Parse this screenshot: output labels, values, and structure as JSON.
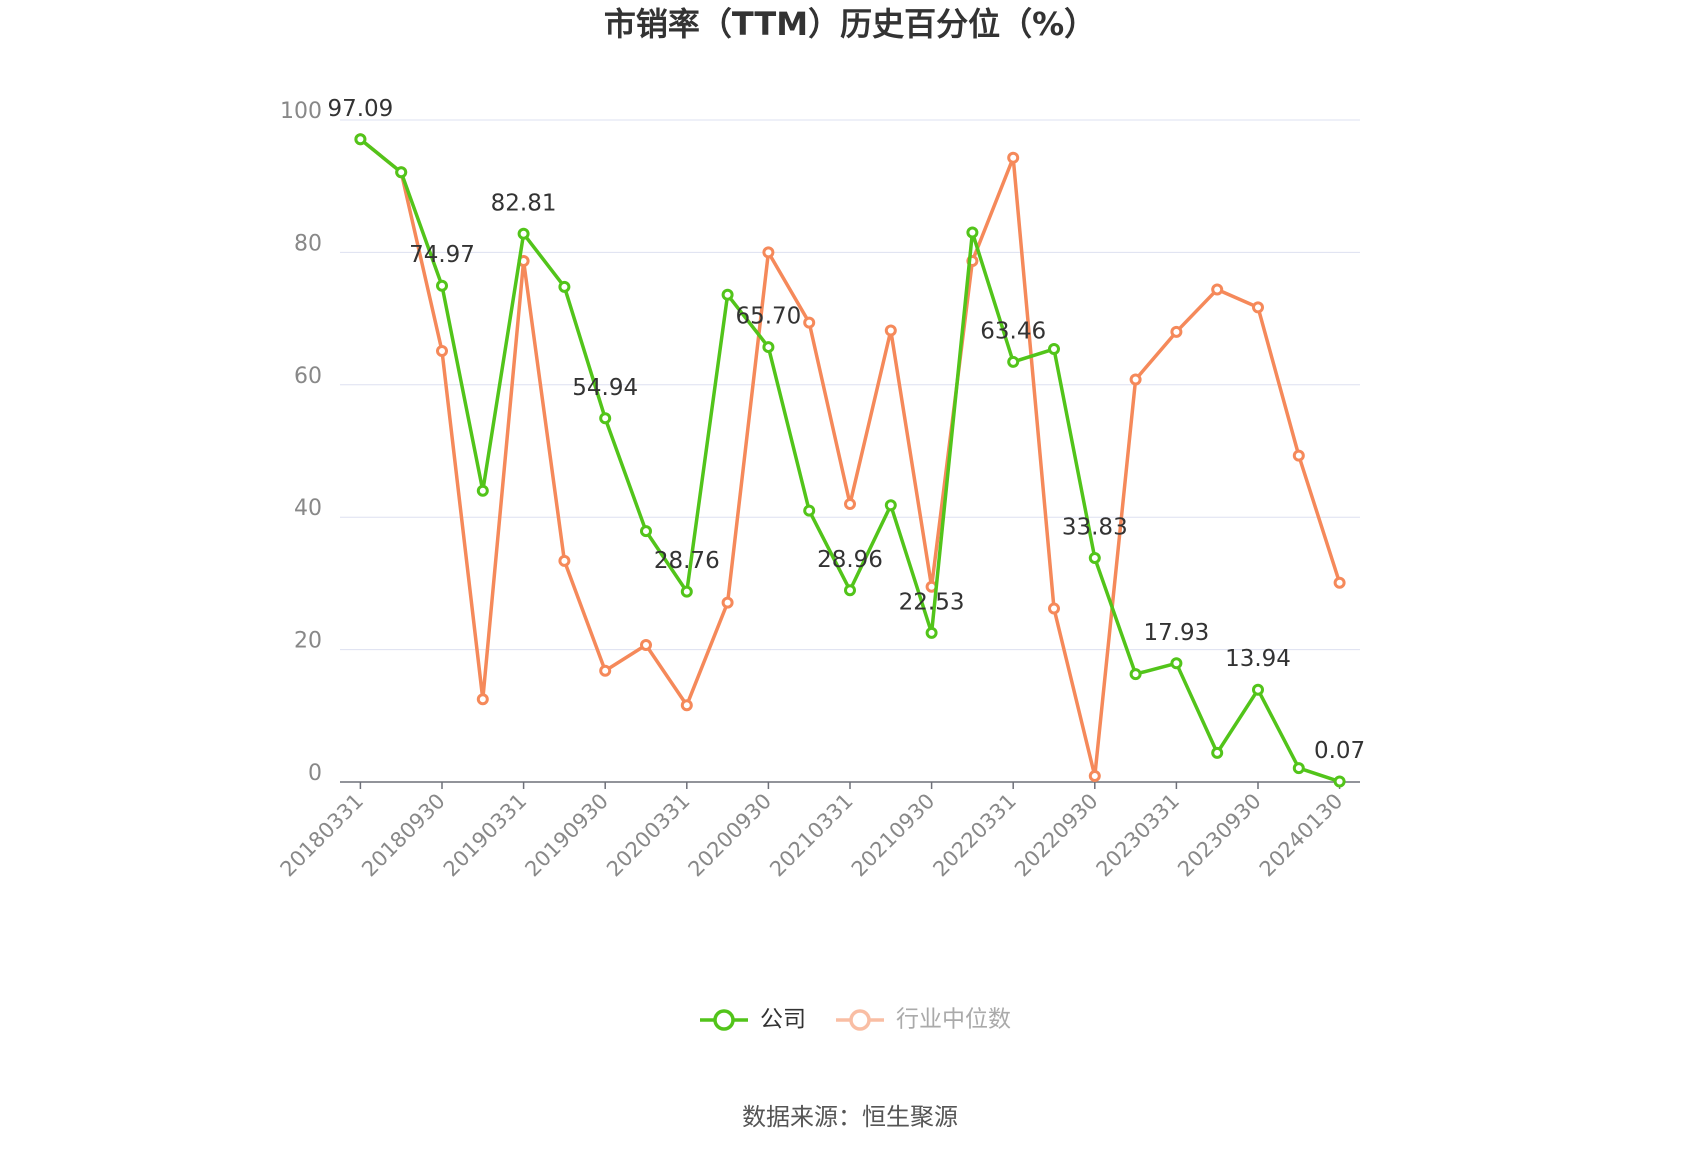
{
  "chart_data": {
    "type": "line",
    "title": "市销率（TTM）历史百分位（%）",
    "source": "数据来源：恒生聚源",
    "categories": [
      "20180331",
      null,
      "20180930",
      null,
      "20190331",
      null,
      "20190930",
      null,
      "20200331",
      null,
      "20200930",
      null,
      "20210331",
      null,
      "20210930",
      null,
      "20220331",
      null,
      "20220930",
      null,
      "20230331",
      null,
      "20230930",
      null,
      "20240130"
    ],
    "series": [
      {
        "name": "公司",
        "color": "#52c41a",
        "values": [
          97.09,
          92.1,
          74.97,
          44.0,
          82.81,
          74.8,
          54.94,
          37.9,
          28.76,
          73.6,
          65.7,
          41.0,
          28.96,
          41.8,
          22.53,
          83.0,
          63.46,
          65.4,
          33.83,
          16.3,
          17.93,
          4.4,
          13.94,
          2.1,
          0.07
        ],
        "value_labels": [
          "97.09",
          null,
          "74.97",
          null,
          "82.81",
          null,
          "54.94",
          null,
          "28.76",
          null,
          "65.70",
          null,
          "28.96",
          null,
          "22.53",
          null,
          "63.46",
          null,
          "33.83",
          null,
          "17.93",
          null,
          "13.94",
          null,
          "0.07"
        ]
      },
      {
        "name": "行业中位数",
        "color": "#f5895a",
        "values": [
          97.09,
          92.1,
          65.1,
          12.5,
          78.7,
          33.4,
          16.8,
          20.7,
          11.6,
          27.1,
          80.0,
          69.4,
          42.0,
          68.2,
          29.5,
          78.7,
          94.3,
          26.2,
          0.9,
          60.8,
          68.0,
          74.4,
          71.7,
          49.3,
          30.1
        ]
      }
    ],
    "ylim": [
      0,
      100
    ],
    "yticks": [
      0,
      20,
      40,
      60,
      80,
      100
    ],
    "grid": true
  }
}
